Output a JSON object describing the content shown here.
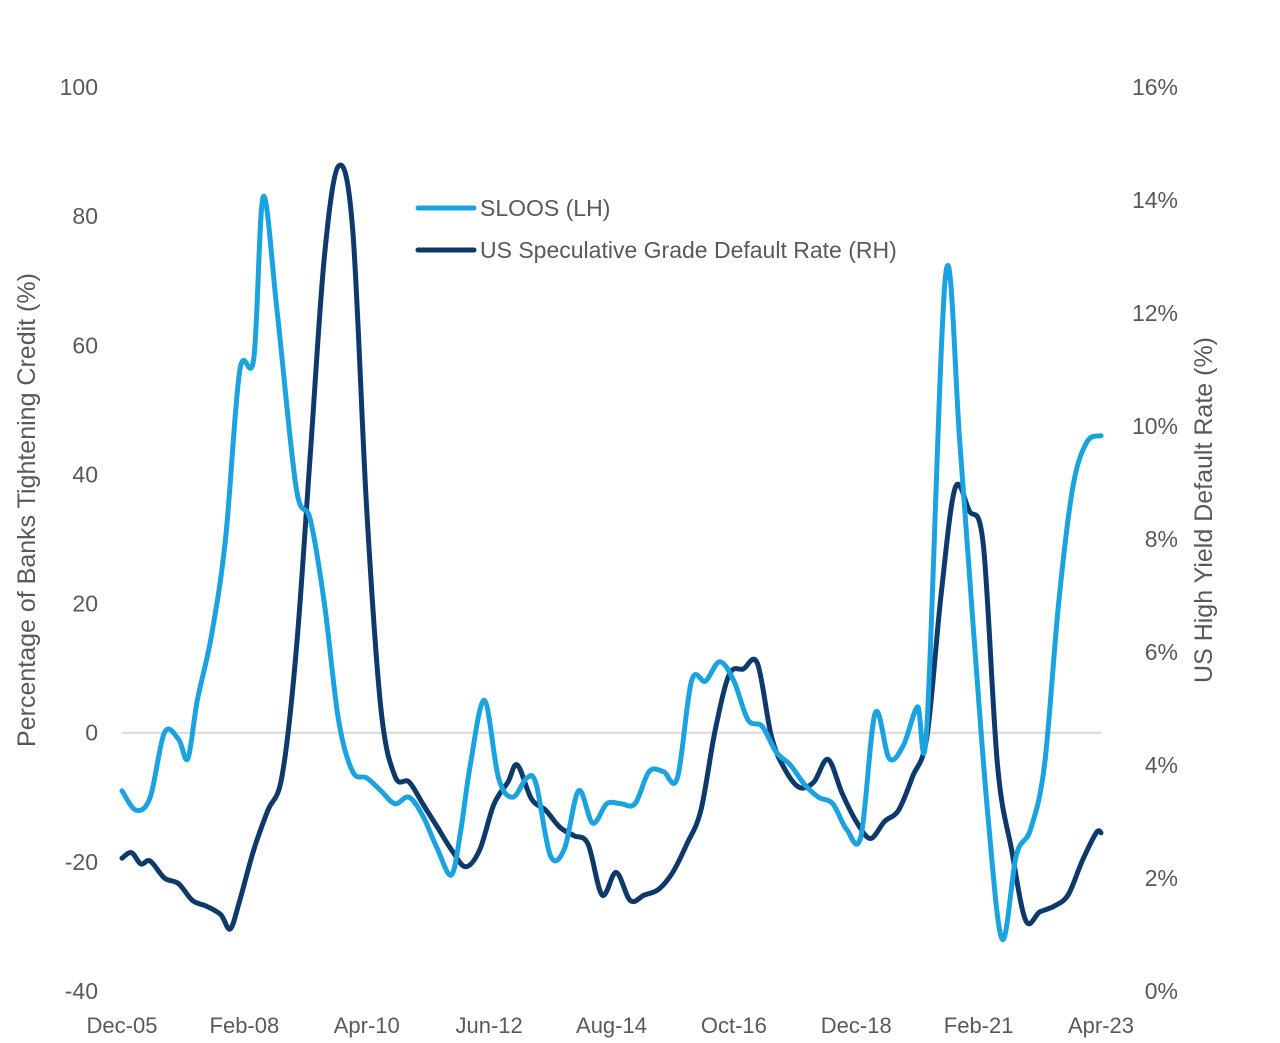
{
  "chart_data": {
    "type": "line",
    "title": "",
    "x_categories": [
      "Dec-05",
      "Feb-08",
      "Apr-10",
      "Jun-12",
      "Aug-14",
      "Oct-16",
      "Dec-18",
      "Feb-21",
      "Apr-23"
    ],
    "x_range": [
      "Dec-05",
      "Apr-23"
    ],
    "ylabel_left": "Percentage of Banks Tightening Credit (%)",
    "ylabel_right": "US High Yield Default Rate (%)",
    "ylim_left": [
      -40,
      100
    ],
    "ylim_right": [
      0,
      16
    ],
    "left_ticks": [
      "100",
      "80",
      "60",
      "40",
      "20",
      "0",
      "-20",
      "-40"
    ],
    "right_ticks": [
      "16%",
      "14%",
      "12%",
      "10%",
      "8%",
      "6%",
      "4%",
      "2%",
      "0%"
    ],
    "grid": false,
    "zero_line": true,
    "legend_position": "top-center",
    "colors": {
      "sloos": "#1ba3e0",
      "default_rate": "#0d3a6b",
      "zero_line": "#d9d9d9",
      "text": "#595959"
    },
    "series": [
      {
        "name": "SLOOS (LH)",
        "axis": "left",
        "points": [
          [
            "2005-12",
            -9
          ],
          [
            "2006-03",
            -12
          ],
          [
            "2006-06",
            -10
          ],
          [
            "2006-09",
            0
          ],
          [
            "2006-12",
            -1
          ],
          [
            "2007-02",
            -4
          ],
          [
            "2007-04",
            5
          ],
          [
            "2007-07",
            15
          ],
          [
            "2007-10",
            30
          ],
          [
            "2008-01",
            56
          ],
          [
            "2008-04",
            58
          ],
          [
            "2008-06",
            83
          ],
          [
            "2008-09",
            65
          ],
          [
            "2009-01",
            38
          ],
          [
            "2009-04",
            33
          ],
          [
            "2009-07",
            20
          ],
          [
            "2009-10",
            2
          ],
          [
            "2010-01",
            -6
          ],
          [
            "2010-04",
            -7
          ],
          [
            "2010-07",
            -9
          ],
          [
            "2010-10",
            -11
          ],
          [
            "2011-01",
            -10
          ],
          [
            "2011-04",
            -13
          ],
          [
            "2011-07",
            -18
          ],
          [
            "2011-10",
            -22
          ],
          [
            "2011-12",
            -15
          ],
          [
            "2012-02",
            -5
          ],
          [
            "2012-05",
            5
          ],
          [
            "2012-08",
            -7
          ],
          [
            "2012-11",
            -10
          ],
          [
            "2013-02",
            -7
          ],
          [
            "2013-04",
            -8
          ],
          [
            "2013-07",
            -19
          ],
          [
            "2013-10",
            -18
          ],
          [
            "2014-01",
            -9
          ],
          [
            "2014-04",
            -14
          ],
          [
            "2014-07",
            -11
          ],
          [
            "2014-10",
            -11
          ],
          [
            "2015-01",
            -11
          ],
          [
            "2015-04",
            -6
          ],
          [
            "2015-07",
            -6
          ],
          [
            "2015-10",
            -7
          ],
          [
            "2016-01",
            8
          ],
          [
            "2016-04",
            8
          ],
          [
            "2016-07",
            11
          ],
          [
            "2016-10",
            8
          ],
          [
            "2017-01",
            2
          ],
          [
            "2017-04",
            1
          ],
          [
            "2017-07",
            -3
          ],
          [
            "2017-10",
            -5
          ],
          [
            "2018-01",
            -8
          ],
          [
            "2018-04",
            -10
          ],
          [
            "2018-07",
            -11
          ],
          [
            "2018-10",
            -15
          ],
          [
            "2019-01",
            -16
          ],
          [
            "2019-04",
            3
          ],
          [
            "2019-07",
            -4
          ],
          [
            "2019-10",
            -2
          ],
          [
            "2020-01",
            4
          ],
          [
            "2020-03",
            1
          ],
          [
            "2020-07",
            71
          ],
          [
            "2020-10",
            45
          ],
          [
            "2021-01",
            15
          ],
          [
            "2021-04",
            -13
          ],
          [
            "2021-07",
            -32
          ],
          [
            "2021-10",
            -19
          ],
          [
            "2022-01",
            -15
          ],
          [
            "2022-04",
            -5
          ],
          [
            "2022-07",
            20
          ],
          [
            "2022-10",
            38
          ],
          [
            "2023-01",
            45
          ],
          [
            "2023-04",
            46
          ]
        ]
      },
      {
        "name": "US Speculative Grade Default Rate (RH)",
        "axis": "right",
        "points": [
          [
            "2005-12",
            2.35
          ],
          [
            "2006-02",
            2.45
          ],
          [
            "2006-04",
            2.25
          ],
          [
            "2006-06",
            2.3
          ],
          [
            "2006-09",
            2.0
          ],
          [
            "2006-12",
            1.9
          ],
          [
            "2007-03",
            1.6
          ],
          [
            "2007-06",
            1.5
          ],
          [
            "2007-09",
            1.35
          ],
          [
            "2007-11",
            1.1
          ],
          [
            "2008-01",
            1.6
          ],
          [
            "2008-04",
            2.5
          ],
          [
            "2008-07",
            3.2
          ],
          [
            "2008-10",
            3.8
          ],
          [
            "2009-01",
            6.0
          ],
          [
            "2009-04",
            9.5
          ],
          [
            "2009-07",
            13.0
          ],
          [
            "2009-10",
            14.6
          ],
          [
            "2010-01",
            13.5
          ],
          [
            "2010-04",
            8.5
          ],
          [
            "2010-07",
            5.0
          ],
          [
            "2010-10",
            3.8
          ],
          [
            "2011-01",
            3.7
          ],
          [
            "2011-04",
            3.3
          ],
          [
            "2011-07",
            2.9
          ],
          [
            "2011-10",
            2.5
          ],
          [
            "2012-01",
            2.2
          ],
          [
            "2012-04",
            2.5
          ],
          [
            "2012-07",
            3.3
          ],
          [
            "2012-10",
            3.7
          ],
          [
            "2012-12",
            4.0
          ],
          [
            "2013-03",
            3.4
          ],
          [
            "2013-06",
            3.2
          ],
          [
            "2013-09",
            2.9
          ],
          [
            "2013-12",
            2.75
          ],
          [
            "2014-03",
            2.6
          ],
          [
            "2014-06",
            1.7
          ],
          [
            "2014-09",
            2.1
          ],
          [
            "2014-12",
            1.6
          ],
          [
            "2015-03",
            1.7
          ],
          [
            "2015-06",
            1.8
          ],
          [
            "2015-09",
            2.1
          ],
          [
            "2015-12",
            2.6
          ],
          [
            "2016-03",
            3.2
          ],
          [
            "2016-06",
            4.6
          ],
          [
            "2016-09",
            5.6
          ],
          [
            "2016-12",
            5.7
          ],
          [
            "2017-03",
            5.8
          ],
          [
            "2017-06",
            4.5
          ],
          [
            "2017-09",
            3.9
          ],
          [
            "2017-12",
            3.6
          ],
          [
            "2018-03",
            3.7
          ],
          [
            "2018-06",
            4.1
          ],
          [
            "2018-09",
            3.5
          ],
          [
            "2018-12",
            3.0
          ],
          [
            "2019-03",
            2.7
          ],
          [
            "2019-06",
            3.0
          ],
          [
            "2019-09",
            3.2
          ],
          [
            "2019-12",
            3.8
          ],
          [
            "2020-03",
            4.5
          ],
          [
            "2020-06",
            7.0
          ],
          [
            "2020-09",
            8.9
          ],
          [
            "2020-12",
            8.5
          ],
          [
            "2021-03",
            7.9
          ],
          [
            "2021-06",
            4.0
          ],
          [
            "2021-09",
            2.5
          ],
          [
            "2021-12",
            1.25
          ],
          [
            "2022-03",
            1.4
          ],
          [
            "2022-06",
            1.5
          ],
          [
            "2022-09",
            1.7
          ],
          [
            "2022-12",
            2.3
          ],
          [
            "2023-03",
            2.8
          ],
          [
            "2023-04",
            2.8
          ]
        ]
      }
    ]
  }
}
